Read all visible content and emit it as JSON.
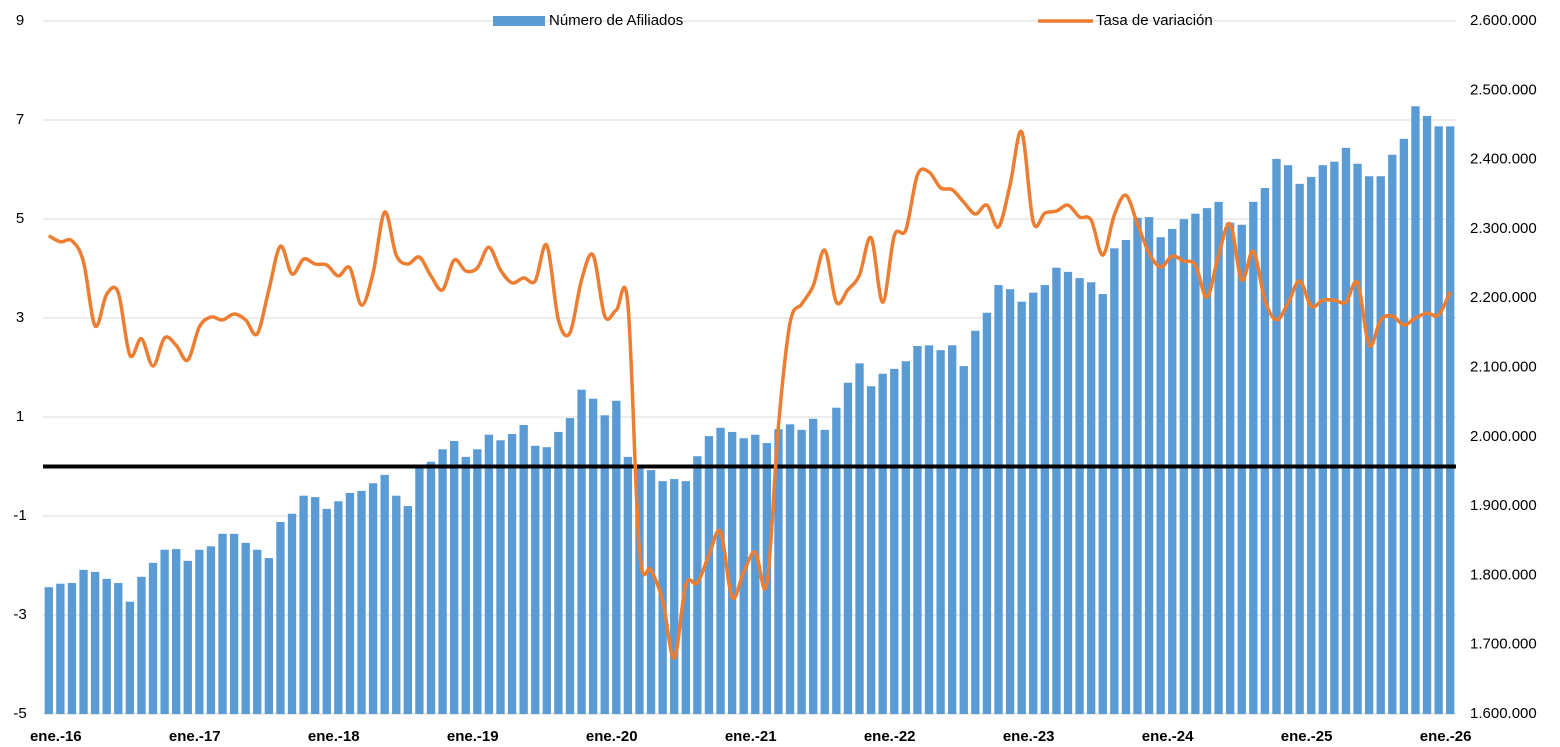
{
  "chart_data": {
    "type": "bar_line",
    "categories": [
      "ene.-16",
      null,
      null,
      null,
      null,
      null,
      null,
      null,
      null,
      null,
      null,
      null,
      "ene.-17",
      null,
      null,
      null,
      null,
      null,
      null,
      null,
      null,
      null,
      null,
      null,
      "ene.-18",
      null,
      null,
      null,
      null,
      null,
      null,
      null,
      null,
      null,
      null,
      null,
      "ene.-19",
      null,
      null,
      null,
      null,
      null,
      null,
      null,
      null,
      null,
      null,
      null,
      "ene.-20",
      null,
      null,
      null,
      null,
      null,
      null,
      null,
      null,
      null,
      null,
      null,
      "ene.-21",
      null,
      null,
      null,
      null,
      null,
      null,
      null,
      null,
      null,
      null,
      null,
      "ene.-22",
      null,
      null,
      null,
      null,
      null,
      null,
      null,
      null,
      null,
      null,
      null,
      "ene.-23",
      null,
      null,
      null,
      null,
      null,
      null,
      null,
      null,
      null,
      null,
      null,
      "ene.-24",
      null,
      null,
      null,
      null,
      null,
      null,
      null,
      null,
      null,
      null,
      null,
      "ene.-25",
      null,
      null,
      null,
      null,
      null,
      null,
      null,
      null,
      null,
      null,
      null,
      "ene.-26",
      null
    ],
    "series": [
      {
        "name": "Número de Afiliados",
        "type": "bar",
        "axis": "y2",
        "color": "#5b9bd5",
        "values": [
          1783000,
          1788000,
          1789000,
          1808000,
          1805000,
          1795000,
          1789000,
          1762000,
          1798000,
          1818000,
          1837000,
          1838000,
          1821000,
          1837000,
          1842000,
          1860000,
          1860000,
          1847000,
          1837000,
          1825000,
          1877000,
          1889000,
          1915000,
          1913000,
          1896000,
          1907000,
          1919000,
          1922000,
          1933000,
          1945000,
          1915000,
          1900000,
          1955000,
          1964000,
          1982000,
          1994000,
          1971000,
          1982000,
          2003000,
          1995000,
          2004000,
          2017000,
          1987000,
          1985000,
          2007000,
          2027000,
          2068000,
          2055000,
          2031000,
          2052000,
          1971000,
          1955000,
          1952000,
          1936000,
          1939000,
          1936000,
          1972000,
          2001000,
          2013000,
          2007000,
          1998000,
          2003000,
          1991000,
          2011000,
          2018000,
          2010000,
          2026000,
          2010000,
          2042000,
          2078000,
          2106000,
          2073000,
          2091000,
          2098000,
          2109000,
          2131000,
          2132000,
          2125000,
          2132000,
          2102000,
          2153000,
          2179000,
          2219000,
          2213000,
          2195000,
          2208000,
          2219000,
          2244000,
          2238000,
          2229000,
          2223000,
          2206000,
          2272000,
          2284000,
          2316000,
          2317000,
          2288000,
          2300000,
          2314000,
          2322000,
          2330000,
          2339000,
          2309000,
          2306000,
          2339000,
          2359000,
          2401000,
          2392000,
          2365000,
          2375000,
          2392000,
          2397000,
          2417000,
          2394000,
          2376000,
          2376000,
          2407000,
          2430000,
          2477000,
          2463000,
          2448000,
          2448000
        ]
      },
      {
        "name": "Tasa de variación",
        "type": "line",
        "axis": "y",
        "color": "#ed7d31",
        "values": [
          4.66,
          4.54,
          4.56,
          4.13,
          2.84,
          3.48,
          3.51,
          2.25,
          2.58,
          2.03,
          2.6,
          2.45,
          2.15,
          2.82,
          3.02,
          2.96,
          3.08,
          2.96,
          2.68,
          3.57,
          4.45,
          3.89,
          4.19,
          4.09,
          4.07,
          3.85,
          4.01,
          3.26,
          3.91,
          5.14,
          4.27,
          4.09,
          4.23,
          3.85,
          3.57,
          4.17,
          3.95,
          4.01,
          4.43,
          3.97,
          3.71,
          3.81,
          3.75,
          4.47,
          2.96,
          2.7,
          3.77,
          4.27,
          3.04,
          3.16,
          3.28,
          -1.71,
          -2.09,
          -2.7,
          -3.87,
          -2.39,
          -2.35,
          -1.79,
          -1.32,
          -2.64,
          -2.13,
          -1.73,
          -2.37,
          0.82,
          2.9,
          3.28,
          3.65,
          4.37,
          3.32,
          3.57,
          3.87,
          4.62,
          3.32,
          4.66,
          4.78,
          5.89,
          5.95,
          5.63,
          5.59,
          5.34,
          5.1,
          5.28,
          4.84,
          5.69,
          6.76,
          4.94,
          5.12,
          5.16,
          5.28,
          5.04,
          4.98,
          4.27,
          5.08,
          5.48,
          4.9,
          4.31,
          4.03,
          4.25,
          4.15,
          4.07,
          3.42,
          4.27,
          4.9,
          3.77,
          4.35,
          3.36,
          2.96,
          3.3,
          3.75,
          3.24,
          3.36,
          3.36,
          3.32,
          3.71,
          2.45,
          2.96,
          3.04,
          2.86,
          3.0,
          3.1,
          3.06,
          3.53
        ]
      }
    ],
    "ylim": [
      -5,
      9
    ],
    "yticks": [
      -5,
      -3,
      -1,
      1,
      3,
      5,
      7,
      9
    ],
    "y2lim": [
      1600000,
      2600000
    ],
    "y2ticks": [
      {
        "value": 1600000,
        "label": "1.600.000"
      },
      {
        "value": 1700000,
        "label": "1.700.000"
      },
      {
        "value": 1800000,
        "label": "1.800.000"
      },
      {
        "value": 1900000,
        "label": "1.900.000"
      },
      {
        "value": 2000000,
        "label": "2.000.000"
      },
      {
        "value": 2100000,
        "label": "2.100.000"
      },
      {
        "value": 2200000,
        "label": "2.200.000"
      },
      {
        "value": 2300000,
        "label": "2.300.000"
      },
      {
        "value": 2400000,
        "label": "2.400.000"
      },
      {
        "value": 2500000,
        "label": "2.500.000"
      },
      {
        "value": 2600000,
        "label": "2.600.000"
      }
    ],
    "reference_line": 0,
    "reference_color": "#000000",
    "grid": true,
    "legend": "top"
  }
}
